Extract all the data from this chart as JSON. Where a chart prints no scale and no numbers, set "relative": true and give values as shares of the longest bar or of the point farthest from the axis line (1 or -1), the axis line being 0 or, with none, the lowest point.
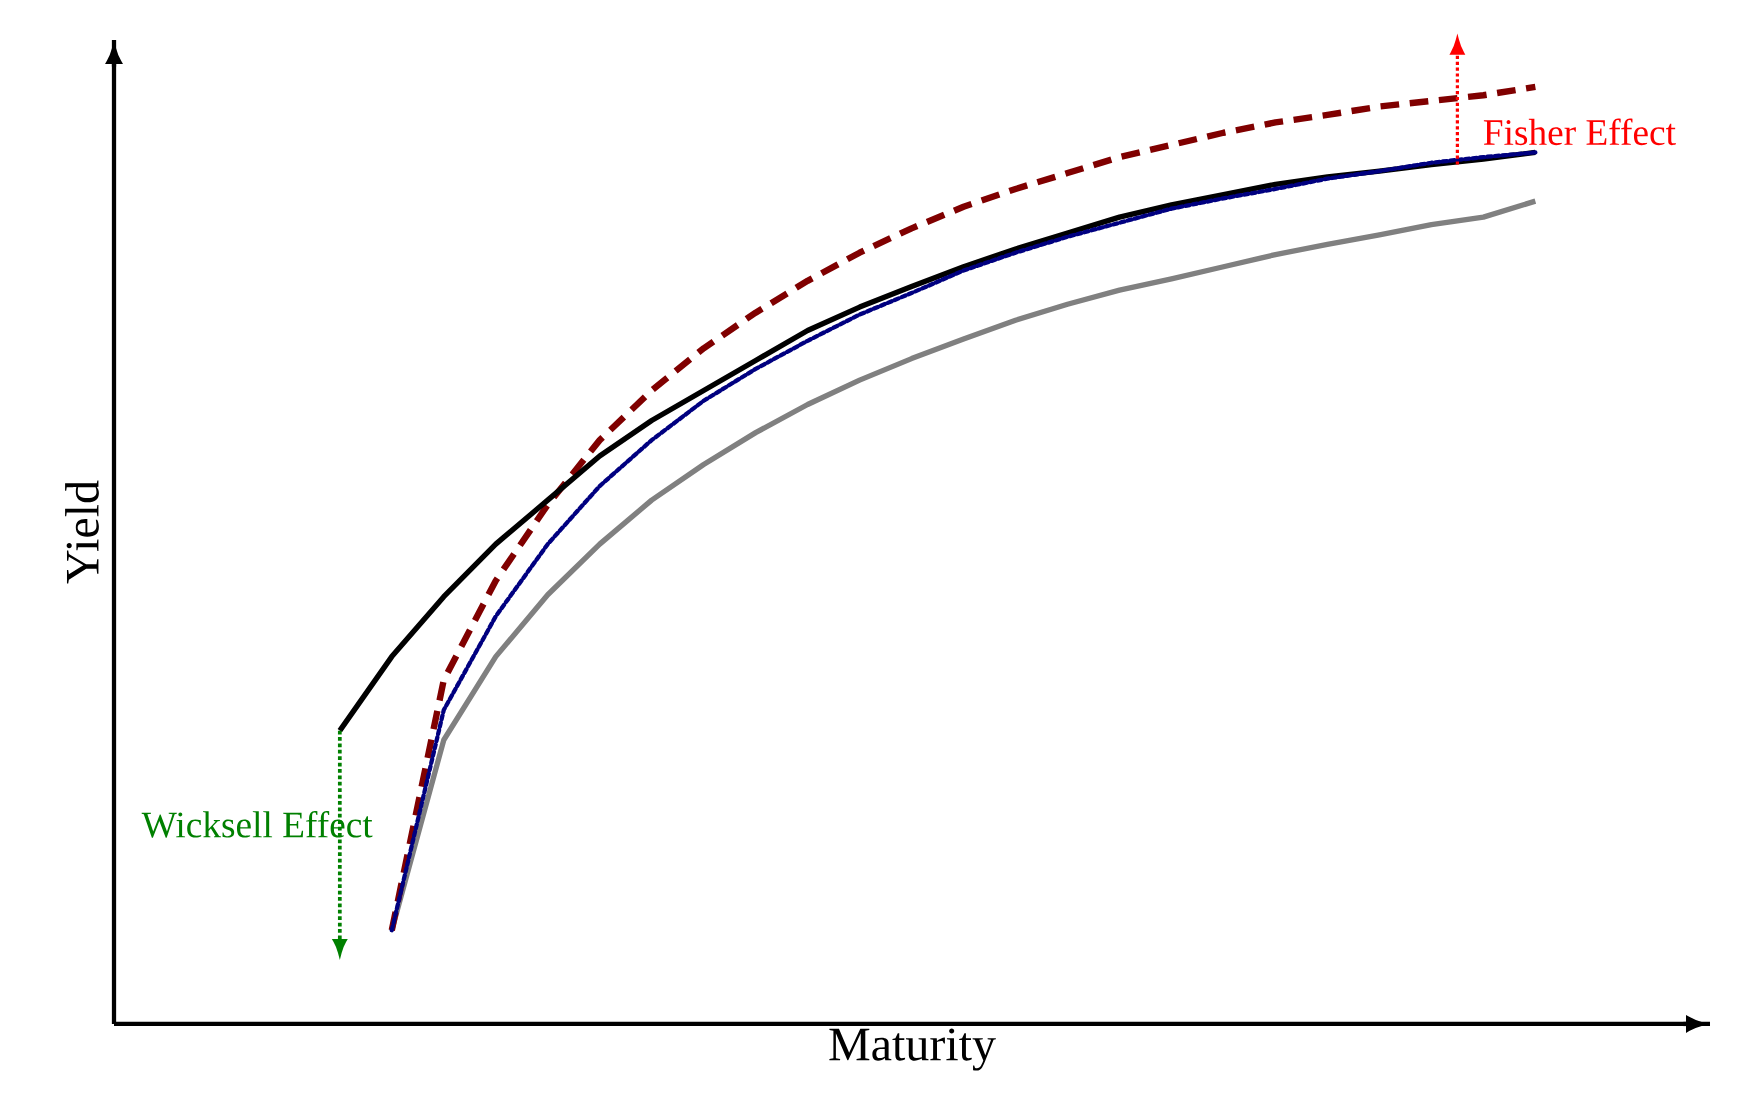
{
  "chart_data": {
    "type": "line",
    "relative": true,
    "xlabel": "Maturity",
    "ylabel": "Yield",
    "categories": [
      null,
      null,
      null,
      null,
      null,
      null,
      null,
      null,
      null,
      null,
      null,
      null,
      null,
      null,
      null,
      null,
      null,
      null,
      null,
      null,
      null,
      null,
      null,
      null
    ],
    "series": [
      {
        "color": "#000000",
        "line_style": "solid",
        "values": [
          0.313,
          0.392,
          0.456,
          0.512,
          0.559,
          0.606,
          0.644,
          0.676,
          0.708,
          0.74,
          0.765,
          0.787,
          0.808,
          0.827,
          0.844,
          0.861,
          0.874,
          0.885,
          0.896,
          0.904,
          0.91,
          0.917,
          0.923,
          0.93
        ]
      },
      {
        "color": "#800000",
        "line_style": "dashed",
        "values": [
          null,
          0.1,
          0.367,
          0.473,
          0.554,
          0.623,
          0.676,
          0.721,
          0.759,
          0.793,
          0.823,
          0.849,
          0.872,
          0.891,
          0.908,
          0.925,
          0.938,
          0.951,
          0.962,
          0.97,
          0.979,
          0.985,
          0.991,
          1.0
        ]
      },
      {
        "color": "#000080",
        "line_style": "dotted",
        "values": [
          null,
          0.1,
          0.335,
          0.435,
          0.512,
          0.574,
          0.623,
          0.665,
          0.699,
          0.729,
          0.757,
          0.78,
          0.804,
          0.823,
          0.84,
          0.855,
          0.87,
          0.881,
          0.891,
          0.902,
          0.91,
          0.919,
          0.925,
          0.93
        ]
      },
      {
        "color": "#808080",
        "line_style": "solid",
        "values": [
          null,
          0.1,
          0.303,
          0.392,
          0.458,
          0.512,
          0.559,
          0.597,
          0.631,
          0.661,
          0.687,
          0.71,
          0.731,
          0.751,
          0.768,
          0.783,
          0.795,
          0.808,
          0.821,
          0.832,
          0.842,
          0.853,
          0.861,
          0.878
        ]
      }
    ],
    "annotations": [
      "Wicksell Effect",
      "Fisher Effect"
    ]
  }
}
